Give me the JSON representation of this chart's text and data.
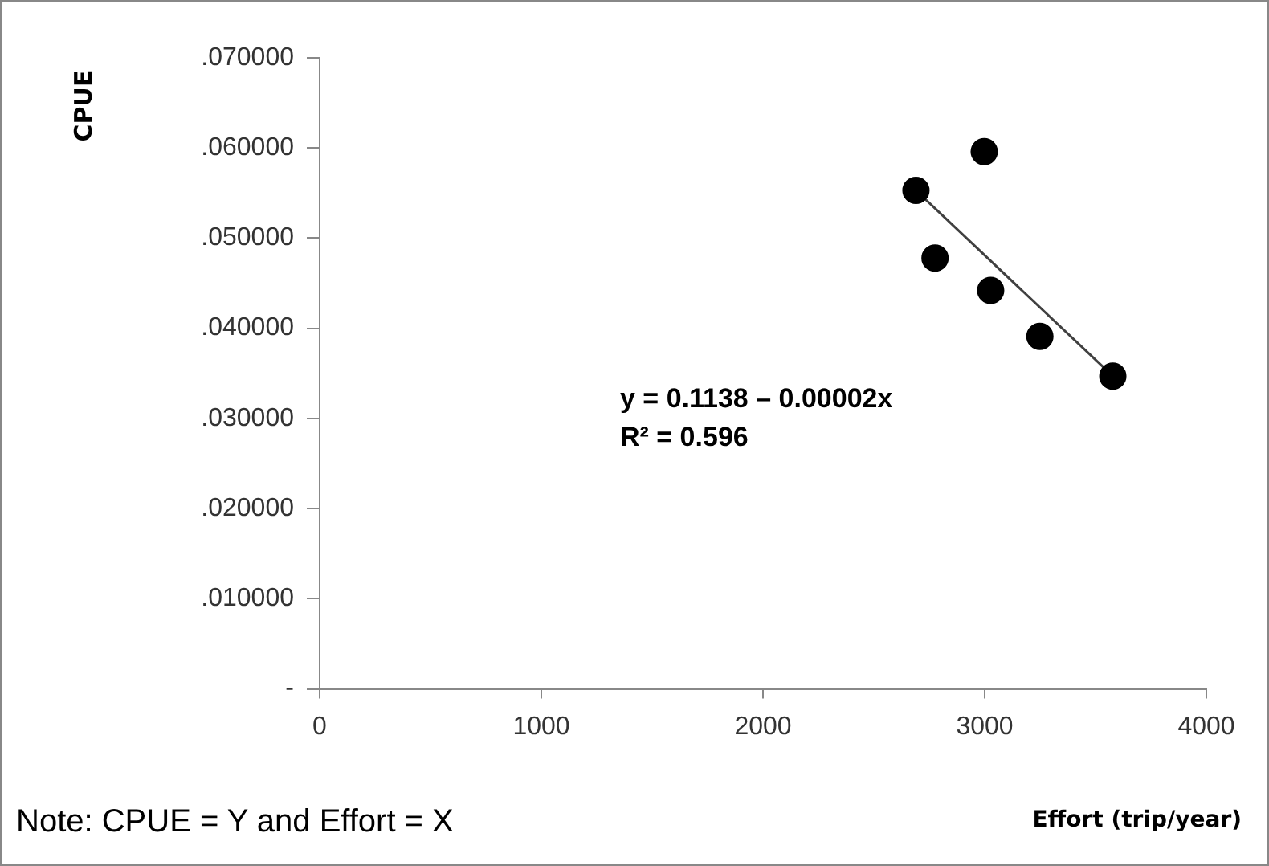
{
  "chart_data": {
    "type": "scatter",
    "xlabel": "Effort (trip/year)",
    "ylabel": "CPUE",
    "annotations": [
      "y = 0.1138 – 0.00002x\nR² = 0.596",
      "Note: CPUE = Y and Effort = X"
    ],
    "series": [
      {
        "type": "scatter",
        "marker": "circle",
        "color": "#000000",
        "x": [
          2690,
          2776,
          2998,
          3027,
          3249,
          3578
        ],
        "values": [
          0.0553,
          0.0478,
          0.0596,
          0.0442,
          0.0391,
          0.0347
        ]
      },
      {
        "type": "line",
        "color": "#404040",
        "x": [
          2690,
          3578
        ],
        "values": [
          0.0553,
          0.0347
        ]
      }
    ],
    "xlim": [
      0,
      4000
    ],
    "xticks": [
      0,
      1000,
      2000,
      3000,
      4000
    ],
    "ylim": [
      0,
      0.07
    ],
    "yticks": [
      {
        "value": 0,
        "label": "-"
      },
      {
        "value": 0.01,
        "label": ".010000"
      },
      {
        "value": 0.02,
        "label": ".020000"
      },
      {
        "value": 0.03,
        "label": ".030000"
      },
      {
        "value": 0.04,
        "label": ".040000"
      },
      {
        "value": 0.05,
        "label": ".050000"
      },
      {
        "value": 0.06,
        "label": ".060000"
      },
      {
        "value": 0.07,
        "label": ".070000"
      }
    ]
  }
}
